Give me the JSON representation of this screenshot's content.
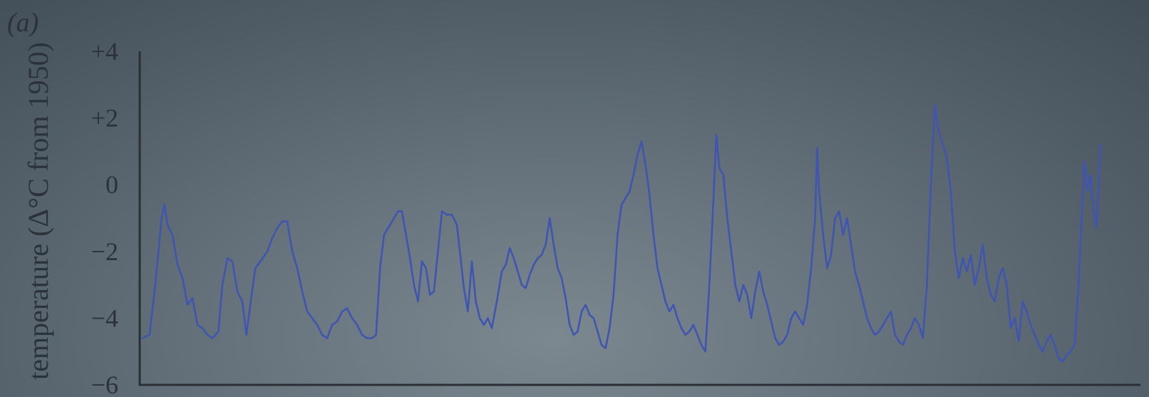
{
  "panel_label": "(a)",
  "chart_data": {
    "type": "line",
    "title": "",
    "ylabel": "temperature (Δ°C from 1950)",
    "xlabel": "",
    "ylim": [
      -6,
      4
    ],
    "yticks": [
      {
        "value": 4,
        "label": "+4"
      },
      {
        "value": 2,
        "label": "+2"
      },
      {
        "value": 0,
        "label": "0"
      },
      {
        "value": -2,
        "label": "−2"
      },
      {
        "value": -4,
        "label": "−4"
      },
      {
        "value": -6,
        "label": "−6"
      }
    ],
    "x_axis_labels_visible": false,
    "grid": false,
    "line_color": "#3f55b0",
    "series": [
      {
        "name": "",
        "points": [
          [
            0.0,
            -4.6
          ],
          [
            0.007,
            -4.5
          ],
          [
            0.012,
            -3.2
          ],
          [
            0.016,
            -2.0
          ],
          [
            0.019,
            -1.0
          ],
          [
            0.022,
            -0.6
          ],
          [
            0.025,
            -1.2
          ],
          [
            0.03,
            -1.5
          ],
          [
            0.035,
            -2.4
          ],
          [
            0.04,
            -2.8
          ],
          [
            0.045,
            -3.6
          ],
          [
            0.05,
            -3.4
          ],
          [
            0.055,
            -4.2
          ],
          [
            0.06,
            -4.3
          ],
          [
            0.065,
            -4.5
          ],
          [
            0.07,
            -4.6
          ],
          [
            0.076,
            -4.4
          ],
          [
            0.08,
            -3.0
          ],
          [
            0.085,
            -2.2
          ],
          [
            0.09,
            -2.3
          ],
          [
            0.095,
            -3.2
          ],
          [
            0.1,
            -3.5
          ],
          [
            0.104,
            -4.5
          ],
          [
            0.108,
            -3.6
          ],
          [
            0.113,
            -2.5
          ],
          [
            0.118,
            -2.3
          ],
          [
            0.125,
            -2.0
          ],
          [
            0.13,
            -1.6
          ],
          [
            0.135,
            -1.3
          ],
          [
            0.14,
            -1.1
          ],
          [
            0.145,
            -1.1
          ],
          [
            0.15,
            -2.0
          ],
          [
            0.155,
            -2.5
          ],
          [
            0.16,
            -3.2
          ],
          [
            0.165,
            -3.8
          ],
          [
            0.17,
            -4.0
          ],
          [
            0.175,
            -4.2
          ],
          [
            0.18,
            -4.5
          ],
          [
            0.185,
            -4.6
          ],
          [
            0.19,
            -4.2
          ],
          [
            0.195,
            -4.1
          ],
          [
            0.2,
            -3.8
          ],
          [
            0.205,
            -3.7
          ],
          [
            0.21,
            -4.0
          ],
          [
            0.215,
            -4.2
          ],
          [
            0.22,
            -4.5
          ],
          [
            0.225,
            -4.6
          ],
          [
            0.23,
            -4.6
          ],
          [
            0.234,
            -4.5
          ],
          [
            0.238,
            -2.5
          ],
          [
            0.242,
            -1.5
          ],
          [
            0.248,
            -1.2
          ],
          [
            0.252,
            -1.0
          ],
          [
            0.256,
            -0.8
          ],
          [
            0.26,
            -0.8
          ],
          [
            0.264,
            -1.5
          ],
          [
            0.268,
            -2.2
          ],
          [
            0.272,
            -3.0
          ],
          [
            0.276,
            -3.5
          ],
          [
            0.28,
            -2.3
          ],
          [
            0.284,
            -2.5
          ],
          [
            0.288,
            -3.3
          ],
          [
            0.292,
            -3.2
          ],
          [
            0.296,
            -2.0
          ],
          [
            0.3,
            -0.8
          ],
          [
            0.305,
            -0.9
          ],
          [
            0.31,
            -0.9
          ],
          [
            0.315,
            -1.2
          ],
          [
            0.318,
            -2.0
          ],
          [
            0.322,
            -3.1
          ],
          [
            0.326,
            -3.8
          ],
          [
            0.33,
            -2.3
          ],
          [
            0.334,
            -3.5
          ],
          [
            0.338,
            -4.0
          ],
          [
            0.342,
            -4.2
          ],
          [
            0.346,
            -4.0
          ],
          [
            0.35,
            -4.3
          ],
          [
            0.355,
            -3.5
          ],
          [
            0.36,
            -2.6
          ],
          [
            0.364,
            -2.4
          ],
          [
            0.368,
            -1.9
          ],
          [
            0.372,
            -2.2
          ],
          [
            0.376,
            -2.6
          ],
          [
            0.38,
            -3.0
          ],
          [
            0.384,
            -3.1
          ],
          [
            0.388,
            -2.7
          ],
          [
            0.392,
            -2.4
          ],
          [
            0.396,
            -2.2
          ],
          [
            0.4,
            -2.1
          ],
          [
            0.404,
            -1.8
          ],
          [
            0.408,
            -1.0
          ],
          [
            0.412,
            -1.8
          ],
          [
            0.416,
            -2.5
          ],
          [
            0.42,
            -2.8
          ],
          [
            0.424,
            -3.4
          ],
          [
            0.428,
            -4.2
          ],
          [
            0.432,
            -4.5
          ],
          [
            0.436,
            -4.4
          ],
          [
            0.44,
            -3.8
          ],
          [
            0.444,
            -3.6
          ],
          [
            0.448,
            -3.9
          ],
          [
            0.452,
            -4.0
          ],
          [
            0.456,
            -4.4
          ],
          [
            0.46,
            -4.8
          ],
          [
            0.464,
            -4.9
          ],
          [
            0.468,
            -4.3
          ],
          [
            0.472,
            -3.3
          ],
          [
            0.476,
            -1.5
          ],
          [
            0.48,
            -0.6
          ],
          [
            0.484,
            -0.4
          ],
          [
            0.488,
            -0.2
          ],
          [
            0.492,
            0.3
          ],
          [
            0.496,
            0.9
          ],
          [
            0.5,
            1.3
          ],
          [
            0.504,
            0.6
          ],
          [
            0.508,
            -0.3
          ],
          [
            0.512,
            -1.5
          ],
          [
            0.516,
            -2.5
          ],
          [
            0.52,
            -3.0
          ],
          [
            0.524,
            -3.5
          ],
          [
            0.528,
            -3.8
          ],
          [
            0.532,
            -3.6
          ],
          [
            0.536,
            -4.0
          ],
          [
            0.54,
            -4.3
          ],
          [
            0.544,
            -4.5
          ],
          [
            0.548,
            -4.4
          ],
          [
            0.552,
            -4.2
          ],
          [
            0.556,
            -4.5
          ],
          [
            0.56,
            -4.8
          ],
          [
            0.564,
            -5.0
          ],
          [
            0.568,
            -3.0
          ],
          [
            0.572,
            -0.5
          ],
          [
            0.575,
            1.5
          ],
          [
            0.578,
            0.5
          ],
          [
            0.582,
            0.3
          ],
          [
            0.586,
            -1.0
          ],
          [
            0.59,
            -2.0
          ],
          [
            0.594,
            -3.0
          ],
          [
            0.598,
            -3.5
          ],
          [
            0.602,
            -3.0
          ],
          [
            0.606,
            -3.3
          ],
          [
            0.61,
            -4.0
          ],
          [
            0.614,
            -3.2
          ],
          [
            0.618,
            -2.6
          ],
          [
            0.622,
            -3.2
          ],
          [
            0.626,
            -3.6
          ],
          [
            0.63,
            -4.1
          ],
          [
            0.634,
            -4.6
          ],
          [
            0.638,
            -4.8
          ],
          [
            0.642,
            -4.7
          ],
          [
            0.646,
            -4.5
          ],
          [
            0.65,
            -4.0
          ],
          [
            0.654,
            -3.8
          ],
          [
            0.658,
            -4.0
          ],
          [
            0.662,
            -4.2
          ],
          [
            0.666,
            -3.6
          ],
          [
            0.67,
            -2.5
          ],
          [
            0.674,
            -1.0
          ],
          [
            0.676,
            1.1
          ],
          [
            0.678,
            -0.2
          ],
          [
            0.682,
            -1.5
          ],
          [
            0.686,
            -2.5
          ],
          [
            0.69,
            -2.1
          ],
          [
            0.694,
            -1.0
          ],
          [
            0.698,
            -0.8
          ],
          [
            0.702,
            -1.5
          ],
          [
            0.706,
            -1.0
          ],
          [
            0.71,
            -1.8
          ],
          [
            0.714,
            -2.6
          ],
          [
            0.718,
            -3.0
          ],
          [
            0.722,
            -3.5
          ],
          [
            0.726,
            -4.0
          ],
          [
            0.73,
            -4.3
          ],
          [
            0.734,
            -4.5
          ],
          [
            0.738,
            -4.4
          ],
          [
            0.742,
            -4.2
          ],
          [
            0.746,
            -4.0
          ],
          [
            0.75,
            -3.8
          ],
          [
            0.754,
            -4.5
          ],
          [
            0.758,
            -4.7
          ],
          [
            0.762,
            -4.8
          ],
          [
            0.766,
            -4.5
          ],
          [
            0.77,
            -4.3
          ],
          [
            0.774,
            -4.0
          ],
          [
            0.778,
            -4.2
          ],
          [
            0.782,
            -4.6
          ],
          [
            0.786,
            -3.0
          ],
          [
            0.79,
            0.0
          ],
          [
            0.794,
            2.4
          ],
          [
            0.798,
            1.6
          ],
          [
            0.802,
            1.2
          ],
          [
            0.806,
            0.8
          ],
          [
            0.81,
            -0.2
          ],
          [
            0.814,
            -2.0
          ],
          [
            0.818,
            -2.8
          ],
          [
            0.822,
            -2.2
          ],
          [
            0.826,
            -2.6
          ],
          [
            0.83,
            -2.1
          ],
          [
            0.834,
            -3.0
          ],
          [
            0.838,
            -2.5
          ],
          [
            0.842,
            -1.8
          ],
          [
            0.846,
            -2.8
          ],
          [
            0.85,
            -3.3
          ],
          [
            0.854,
            -3.5
          ],
          [
            0.858,
            -2.8
          ],
          [
            0.862,
            -2.5
          ],
          [
            0.866,
            -3.0
          ],
          [
            0.87,
            -4.3
          ],
          [
            0.874,
            -4.0
          ],
          [
            0.878,
            -4.7
          ],
          [
            0.882,
            -3.5
          ],
          [
            0.886,
            -3.8
          ],
          [
            0.89,
            -4.2
          ],
          [
            0.894,
            -4.5
          ],
          [
            0.898,
            -4.8
          ],
          [
            0.902,
            -5.0
          ],
          [
            0.906,
            -4.7
          ],
          [
            0.91,
            -4.5
          ],
          [
            0.914,
            -4.8
          ],
          [
            0.918,
            -5.2
          ],
          [
            0.922,
            -5.3
          ],
          [
            0.926,
            -5.1
          ],
          [
            0.93,
            -5.0
          ],
          [
            0.934,
            -4.8
          ],
          [
            0.938,
            -3.0
          ],
          [
            0.941,
            -1.0
          ],
          [
            0.944,
            0.7
          ],
          [
            0.947,
            -0.2
          ],
          [
            0.95,
            0.3
          ],
          [
            0.953,
            -0.8
          ],
          [
            0.956,
            -1.3
          ],
          [
            0.96,
            1.2
          ]
        ]
      }
    ]
  }
}
